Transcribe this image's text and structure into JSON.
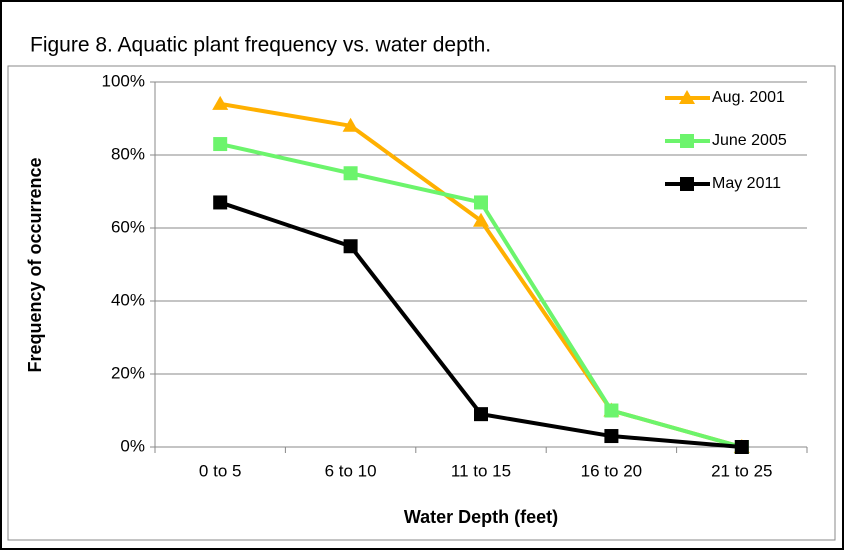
{
  "chart_data": {
    "type": "line",
    "title": "Figure 8.  Aquatic plant frequency vs. water depth.",
    "x_label": "Water Depth (feet)",
    "y_label": "Frequency of occurrence",
    "categories": [
      "0 to 5",
      "6 to 10",
      "11 to 15",
      "16 to 20",
      "21 to 25"
    ],
    "series": [
      {
        "name": "Aug. 2001",
        "color": "#ffb000",
        "marker": "triangle",
        "values": [
          94,
          88,
          62,
          10,
          0
        ]
      },
      {
        "name": "June 2005",
        "color": "#6cf46c",
        "marker": "square",
        "values": [
          83,
          75,
          67,
          10,
          0
        ]
      },
      {
        "name": "May 2011",
        "color": "#000000",
        "marker": "square",
        "values": [
          67,
          55,
          9,
          3,
          0
        ]
      }
    ],
    "ylim": [
      0,
      100
    ],
    "yticks": [
      {
        "value": 0,
        "label": "0%"
      },
      {
        "value": 20,
        "label": "20%"
      },
      {
        "value": 40,
        "label": "40%"
      },
      {
        "value": 60,
        "label": "60%"
      },
      {
        "value": 80,
        "label": "80%"
      },
      {
        "value": 100,
        "label": "100%"
      }
    ],
    "grid": true
  }
}
